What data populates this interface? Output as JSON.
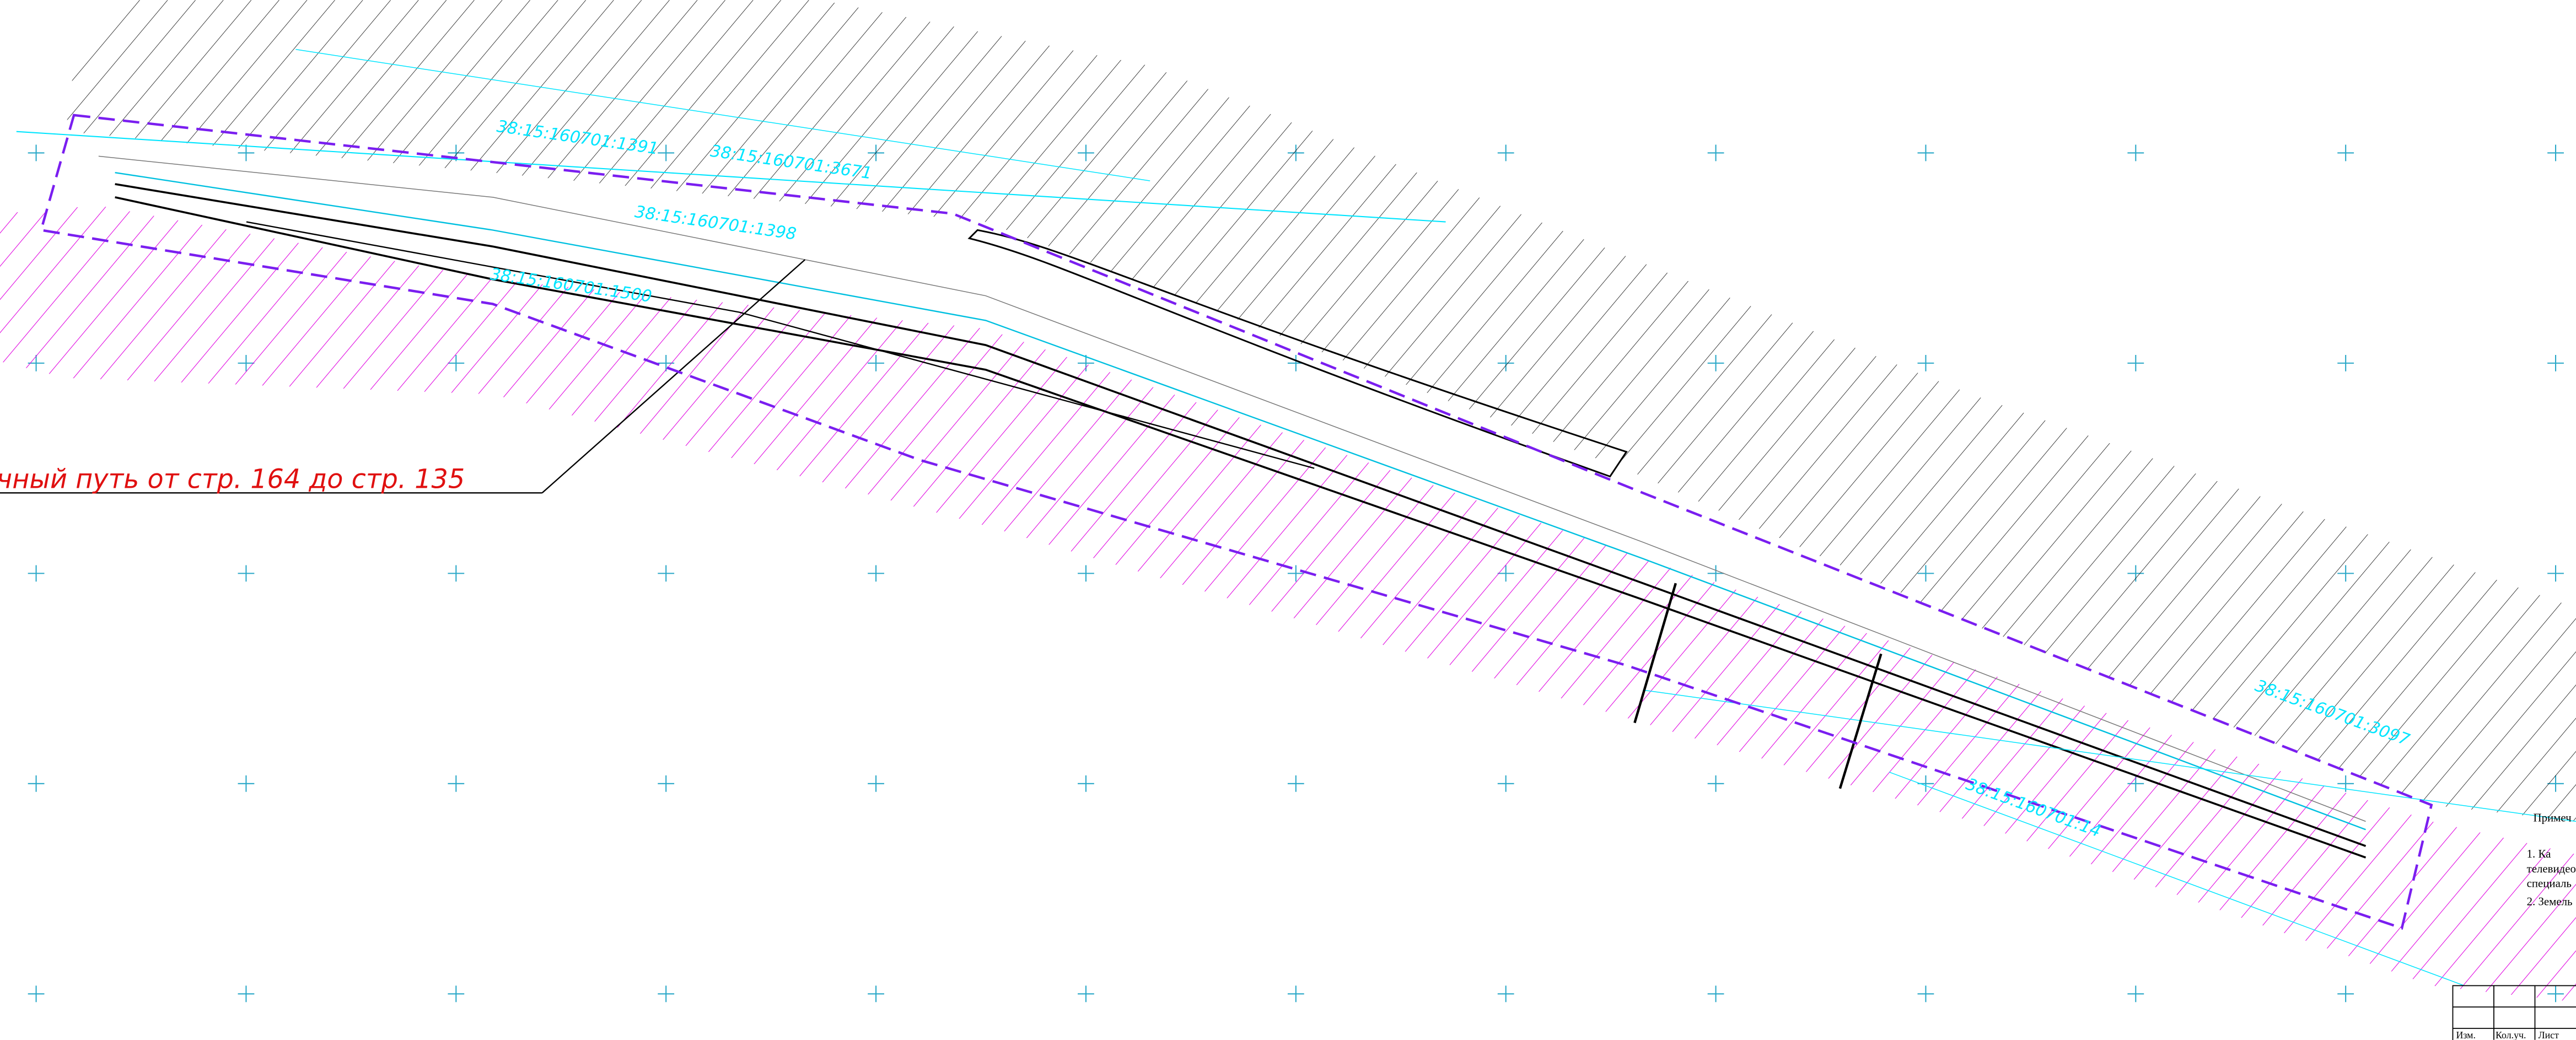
{
  "parcels": [
    "38:15:160701:1391",
    "38:15:160701:3671",
    "38:15:160701:1398",
    "38:15:160701:1500",
    "38:15:160701:3097",
    "38:15:160701:14"
  ],
  "annotation": "чный путь от стр. 164 до стр. 135",
  "notes": {
    "title": "Примеч",
    "items": [
      "1.      Ка",
      "телевидео",
      "специаль",
      "2. Земель"
    ]
  },
  "table": {
    "headers": [
      "Изм.",
      "Кол.уч.",
      "Лист"
    ]
  }
}
